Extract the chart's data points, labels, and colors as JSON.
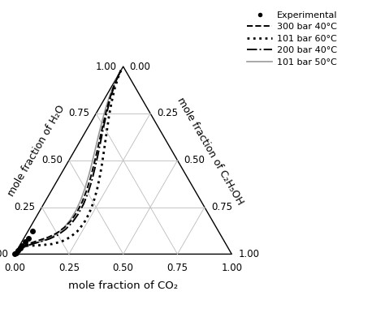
{
  "axis_labels": {
    "left": "mole fraction of H₂O",
    "bottom": "mole fraction of CO₂",
    "right": "mole fraction of C₂H₅OH"
  },
  "tick_values": [
    0.0,
    0.25,
    0.5,
    0.75,
    1.0
  ],
  "experimental_points_co2": [
    0.855,
    0.895,
    0.92,
    0.945,
    0.96,
    0.975,
    0.99,
    1.0
  ],
  "experimental_points_eth": [
    0.02,
    0.02,
    0.015,
    0.01,
    0.008,
    0.005,
    0.002,
    0.0
  ],
  "curves": {
    "300bar_40C": {
      "label": "300 bar 40°C",
      "linestyle": "--",
      "color": "#000000",
      "linewidth": 1.4,
      "co2": [
        0.02,
        0.05,
        0.1,
        0.15,
        0.2,
        0.25,
        0.3,
        0.35,
        0.4,
        0.45,
        0.5,
        0.55,
        0.6,
        0.65,
        0.7,
        0.75,
        0.8,
        0.85,
        0.9,
        0.95,
        0.98
      ],
      "ethanol": [
        0.0,
        0.002,
        0.01,
        0.024,
        0.042,
        0.063,
        0.085,
        0.107,
        0.128,
        0.147,
        0.162,
        0.172,
        0.175,
        0.171,
        0.158,
        0.138,
        0.11,
        0.076,
        0.042,
        0.014,
        0.003
      ]
    },
    "101bar_60C": {
      "label": "101 bar 60°C",
      "linestyle": ":",
      "color": "#000000",
      "linewidth": 2.0,
      "co2": [
        0.02,
        0.05,
        0.1,
        0.15,
        0.2,
        0.25,
        0.3,
        0.35,
        0.4,
        0.45,
        0.5,
        0.55,
        0.6,
        0.65,
        0.7,
        0.75,
        0.8,
        0.85,
        0.9,
        0.93
      ],
      "ethanol": [
        0.0,
        0.005,
        0.02,
        0.042,
        0.068,
        0.098,
        0.128,
        0.158,
        0.185,
        0.208,
        0.225,
        0.235,
        0.236,
        0.228,
        0.21,
        0.183,
        0.146,
        0.102,
        0.055,
        0.025
      ]
    },
    "200bar_40C": {
      "label": "200 bar 40°C",
      "linestyle": "-.",
      "color": "#000000",
      "linewidth": 1.4,
      "co2": [
        0.02,
        0.05,
        0.1,
        0.15,
        0.2,
        0.25,
        0.3,
        0.35,
        0.4,
        0.45,
        0.5,
        0.55,
        0.6,
        0.65,
        0.7,
        0.75,
        0.8,
        0.85,
        0.9,
        0.95,
        0.98
      ],
      "ethanol": [
        0.0,
        0.002,
        0.012,
        0.028,
        0.048,
        0.07,
        0.094,
        0.118,
        0.14,
        0.16,
        0.175,
        0.184,
        0.186,
        0.181,
        0.168,
        0.148,
        0.119,
        0.084,
        0.048,
        0.016,
        0.004
      ]
    },
    "101bar_50C": {
      "label": "101 bar 50°C",
      "linestyle": "-",
      "color": "#999999",
      "linewidth": 1.2,
      "co2": [
        0.02,
        0.05,
        0.1,
        0.15,
        0.2,
        0.25,
        0.3,
        0.35,
        0.4,
        0.45,
        0.5,
        0.55,
        0.6,
        0.65,
        0.7,
        0.75,
        0.8,
        0.85,
        0.9,
        0.95,
        0.98
      ],
      "ethanol": [
        0.0,
        0.001,
        0.007,
        0.018,
        0.033,
        0.051,
        0.071,
        0.092,
        0.113,
        0.132,
        0.148,
        0.16,
        0.166,
        0.165,
        0.157,
        0.141,
        0.116,
        0.084,
        0.05,
        0.018,
        0.004
      ]
    }
  }
}
